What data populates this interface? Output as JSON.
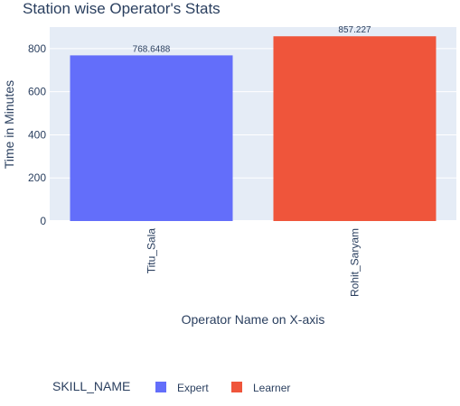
{
  "chart_data": {
    "type": "bar",
    "title": "Station wise Operator's Stats",
    "xlabel": "Operator Name on X-axis",
    "ylabel": "Time in Minutes",
    "ylim": [
      0,
      900
    ],
    "yticks": [
      0,
      200,
      400,
      600,
      800
    ],
    "grid": true,
    "legend_placement": "bottom-left",
    "legend_title": "SKILL_NAME",
    "categories": [
      "Titu_Sala",
      "Rohit_Saryam"
    ],
    "series": [
      {
        "name": "Expert",
        "color": "#636efa",
        "category": "Titu_Sala",
        "value": 768.6488,
        "label": "768.6488"
      },
      {
        "name": "Learner",
        "color": "#ef553b",
        "category": "Rohit_Saryam",
        "value": 857.227,
        "label": "857.227"
      }
    ],
    "plot_background": "#e5ecf6",
    "gridline_color": "#ffffff",
    "text_color": "#2a3f5f"
  }
}
